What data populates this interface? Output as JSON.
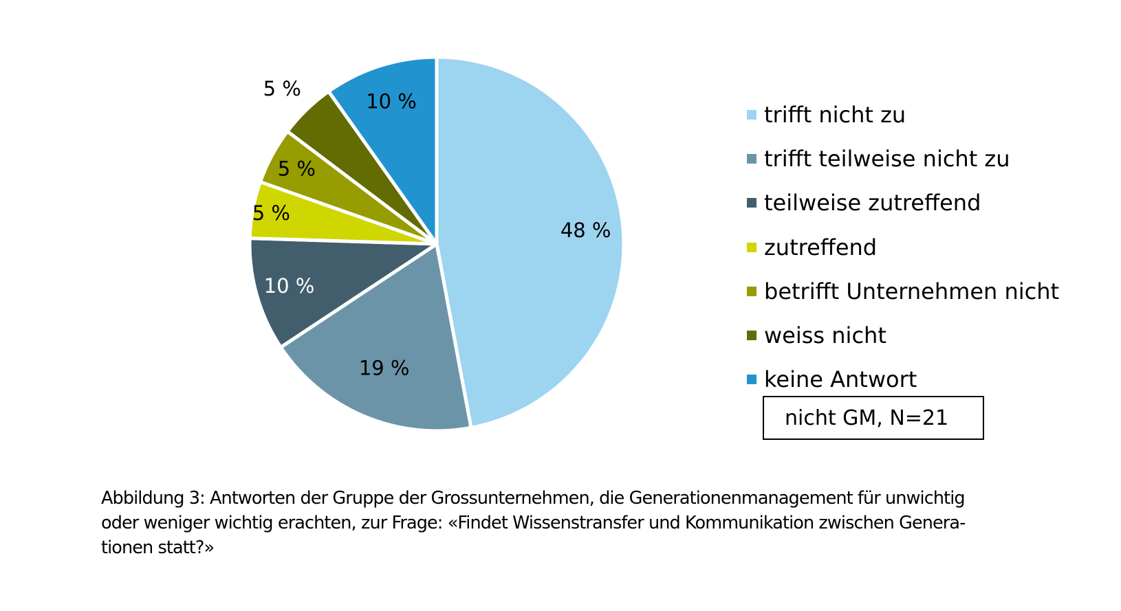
{
  "chart_data": {
    "type": "pie",
    "title": "",
    "start_angle_deg": 0,
    "direction": "clockwise",
    "slices": [
      {
        "label": "trifft nicht zu",
        "value": 48,
        "display": "48 %",
        "color": "#9dd4f0",
        "label_color": "#000000"
      },
      {
        "label": "trifft teilweise nicht zu",
        "value": 19,
        "display": "19 %",
        "color": "#6b94a8",
        "label_color": "#000000"
      },
      {
        "label": "teilweise zutreffend",
        "value": 10,
        "display": "10 %",
        "color": "#425e6d",
        "label_color": "#ffffff"
      },
      {
        "label": "zutreffend",
        "value": 5,
        "display": "5 %",
        "color": "#d0d600",
        "label_color": "#000000"
      },
      {
        "label": "betrifft Unternehmen nicht",
        "value": 5,
        "display": "5 %",
        "color": "#979c00",
        "label_color": "#000000"
      },
      {
        "label": "weiss nicht",
        "value": 5,
        "display": "5 %",
        "color": "#636b03",
        "label_color": "#000000"
      },
      {
        "label": "keine Antwort",
        "value": 10,
        "display": "10 %",
        "color": "#2194d0",
        "label_color": "#000000"
      }
    ],
    "legend_position": "right",
    "annotation": "nicht GM, N=21"
  },
  "caption": {
    "lines": [
      "Abbildung 3: Antworten der Gruppe der Grossunternehmen, die Generationenmanagement für unwichtig",
      "oder weniger wichtig erachten, zur Frage: «Findet Wissenstransfer und Kommunikation zwischen Genera-",
      "tionen statt?»"
    ]
  }
}
